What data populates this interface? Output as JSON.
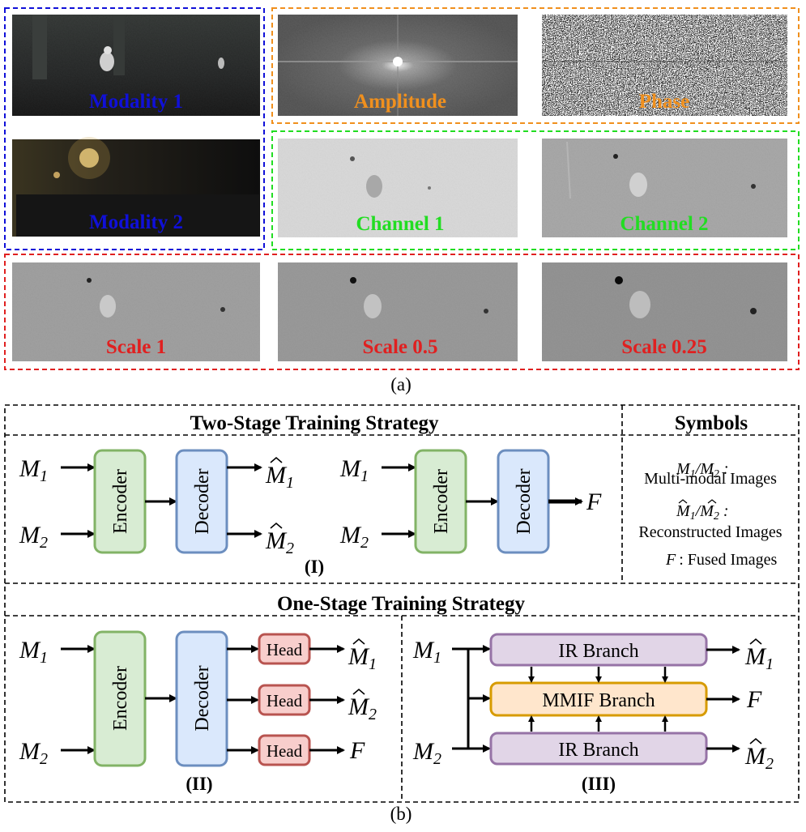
{
  "panel_a": {
    "caption": "(a)",
    "images": {
      "modality1": "Modality 1",
      "modality2": "Modality 2",
      "amplitude": "Amplitude",
      "phase": "Phase",
      "channel1": "Channel 1",
      "channel2": "Channel 2",
      "scale1": "Scale 1",
      "scale05": "Scale 0.5",
      "scale025": "Scale 0.25"
    },
    "colors": {
      "modality": "#1010d8",
      "frequency": "#f0901e",
      "channel": "#22dd22",
      "scale": "#e02020"
    }
  },
  "panel_b": {
    "caption": "(b)",
    "two_stage_title": "Two-Stage Training Strategy",
    "one_stage_title": "One-Stage Training Strategy",
    "symbols_title": "Symbols",
    "symbols": {
      "multimodal_label": "Multi-modal Images",
      "reconstructed_label": "Reconstructed Images",
      "fused_label": ": Fused Images"
    },
    "blocks": {
      "encoder": "Encoder",
      "decoder": "Decoder",
      "head": "Head",
      "ir_branch": "IR Branch",
      "mmif_branch": "MMIF Branch"
    },
    "vars": {
      "m": "M",
      "sub1": "1",
      "sub2": "2",
      "f": "F"
    },
    "labels": {
      "roman1": "(I)",
      "roman2": "(II)",
      "roman3": "(III)"
    },
    "colors": {
      "encoder_fill": "#d8ecd3",
      "encoder_stroke": "#82b366",
      "decoder_fill": "#dae8fc",
      "decoder_stroke": "#6c8ebf",
      "head_fill": "#f8cecc",
      "head_stroke": "#b85450",
      "ir_fill": "#e1d5e7",
      "ir_stroke": "#9673a6",
      "mmif_fill": "#ffe6cc",
      "mmif_stroke": "#d79b00"
    }
  }
}
